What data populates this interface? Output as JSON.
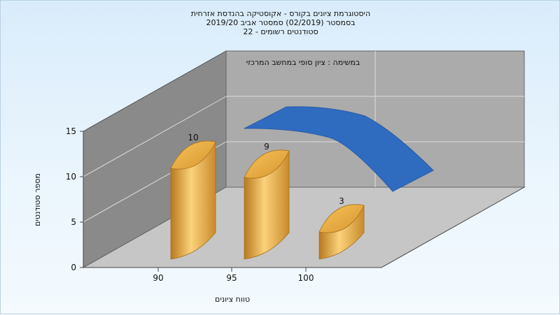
{
  "chart_data": {
    "type": "bar",
    "title_lines": [
      "היסטוגרמת ציונים בקורס - אקוסטיקה בהנדסת אזרחית",
      "בסמסטר  (02/2019)  סמסטר אביב 2019/20",
      "סטודנטים רשומים - 22"
    ],
    "annotation": "במשימה : ציון סופי במחשב המרכזי",
    "xlabel": "טווח ציונים",
    "ylabel": "מספר סטודנטים",
    "categories": [
      "90",
      "95",
      "100"
    ],
    "values": [
      10,
      9,
      3
    ],
    "x_ticks": [
      "90",
      "95",
      "100"
    ],
    "y_ticks": [
      "0",
      "5",
      "10",
      "15"
    ],
    "ylim": [
      0,
      15
    ],
    "grid": true,
    "bar_color": "#e8a83a",
    "curve_color": "#2f6bbf",
    "wall_color": "#8c8c8c"
  }
}
